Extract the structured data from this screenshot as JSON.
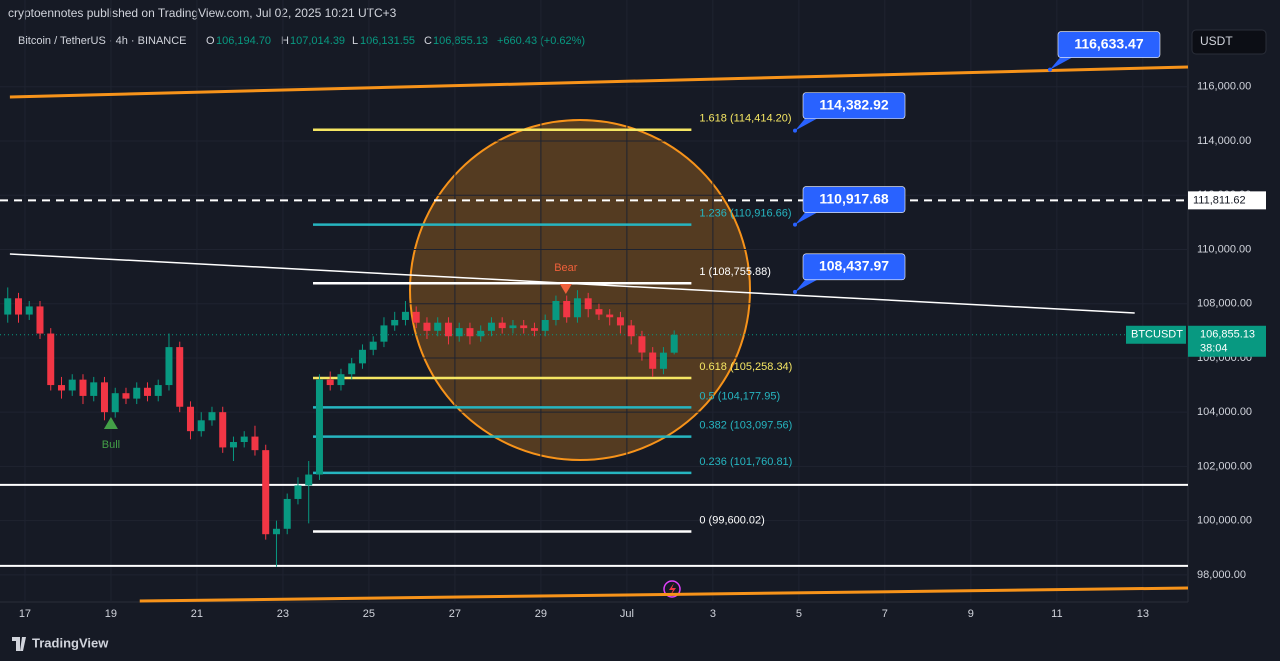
{
  "header": {
    "published": "cryptoennotes published on TradingView.com, Jul 02, 2025 10:21 UTC+3",
    "symbol": "Bitcoin / TetherUS · 4h · BINANCE",
    "o_key": "O",
    "o": "106,194.70",
    "h_key": "H",
    "h": "107,014.39",
    "l_key": "L",
    "l": "106,131.55",
    "c_key": "C",
    "c": "106,855.13",
    "change": "+660.43 (+0.62%)",
    "currency": "USDT",
    "brand": "TradingView"
  },
  "chart_data": {
    "type": "candlestick",
    "up_color": "#089981",
    "down_color": "#f23645",
    "x": [
      16.6,
      16.85,
      17.1,
      17.35,
      17.6,
      17.85,
      18.1,
      18.35,
      18.6,
      18.85,
      19.1,
      19.35,
      19.6,
      19.85,
      20.1,
      20.35,
      20.6,
      20.85,
      21.1,
      21.35,
      21.6,
      21.85,
      22.1,
      22.35,
      22.6,
      22.85,
      23.1,
      23.35,
      23.6,
      23.85,
      24.1,
      24.35,
      24.6,
      24.85,
      25.1,
      25.35,
      25.6,
      25.85,
      26.1,
      26.35,
      26.6,
      26.85,
      27.1,
      27.35,
      27.6,
      27.85,
      28.1,
      28.35,
      28.6,
      28.85,
      29.1,
      29.35,
      29.6,
      29.85,
      30.1,
      30.35,
      30.6,
      30.85,
      31.1,
      31.35,
      31.6,
      31.85,
      32.1
    ],
    "open": [
      107600,
      108200,
      107600,
      107900,
      106900,
      105000,
      104800,
      105200,
      104600,
      105100,
      104000,
      104700,
      104500,
      104900,
      104600,
      105000,
      106400,
      104200,
      103300,
      103700,
      104000,
      102700,
      102900,
      103100,
      102600,
      99500,
      99700,
      100800,
      101300,
      101700,
      105200,
      105000,
      105400,
      105800,
      106300,
      106600,
      107200,
      107400,
      107700,
      107300,
      107000,
      107300,
      106800,
      107100,
      106800,
      107000,
      107300,
      107100,
      107200,
      107100,
      107000,
      107400,
      108100,
      107500,
      108200,
      107800,
      107600,
      107500,
      107200,
      106800,
      106200,
      105600,
      106194.7
    ],
    "high": [
      108600,
      108400,
      108100,
      108100,
      107100,
      105300,
      105400,
      105400,
      105300,
      105300,
      104900,
      104900,
      105100,
      105100,
      105200,
      106900,
      106600,
      104400,
      104000,
      104200,
      104200,
      103100,
      103300,
      103500,
      102800,
      100000,
      101000,
      101600,
      102200,
      105400,
      105500,
      105600,
      106000,
      106500,
      106800,
      107500,
      107700,
      108100,
      107900,
      107500,
      107500,
      107500,
      107300,
      107300,
      107200,
      107500,
      107500,
      107400,
      107400,
      107300,
      107600,
      108300,
      108300,
      108500,
      108400,
      108000,
      107800,
      107700,
      107400,
      107000,
      106400,
      106400,
      107014.39
    ],
    "low": [
      107300,
      107300,
      107400,
      106700,
      104800,
      104500,
      104600,
      104300,
      104400,
      103700,
      103800,
      104300,
      104300,
      104400,
      104400,
      104800,
      104000,
      103000,
      103100,
      103500,
      102500,
      102200,
      102700,
      102400,
      99300,
      98300,
      99500,
      100600,
      99900,
      101500,
      104800,
      104800,
      105200,
      105600,
      106100,
      106400,
      107000,
      107200,
      107100,
      106700,
      106800,
      106500,
      106600,
      106500,
      106600,
      106800,
      106900,
      106900,
      106900,
      106800,
      106800,
      107200,
      107300,
      107300,
      107500,
      107400,
      107200,
      106900,
      106500,
      105900,
      105300,
      105400,
      106131.55
    ],
    "close": [
      108200,
      107600,
      107900,
      106900,
      105000,
      104800,
      105200,
      104600,
      105100,
      104000,
      104700,
      104500,
      104900,
      104600,
      105000,
      106400,
      104200,
      103300,
      103700,
      104000,
      102700,
      102900,
      103100,
      102600,
      99500,
      99700,
      100800,
      101300,
      101700,
      105200,
      105000,
      105400,
      105800,
      106300,
      106600,
      107200,
      107400,
      107700,
      107300,
      107000,
      107300,
      106800,
      107100,
      106800,
      107000,
      107300,
      107100,
      107200,
      107100,
      107000,
      107400,
      108100,
      107500,
      108200,
      107800,
      107600,
      107500,
      107200,
      106800,
      106200,
      105600,
      106195,
      106855.13
    ],
    "xlim": [
      16.42,
      44.05
    ],
    "ylim": [
      97000,
      119200
    ],
    "xticks": [
      17,
      19,
      21,
      23,
      25,
      27,
      29,
      {
        "value": 31,
        "label": "Jul"
      },
      {
        "value": 33,
        "label": "3"
      },
      {
        "value": 35,
        "label": "5"
      },
      {
        "value": 37,
        "label": "7"
      },
      {
        "value": 39,
        "label": "9"
      },
      {
        "value": 41,
        "label": "11"
      },
      {
        "value": 43,
        "label": "13"
      }
    ],
    "yticks": [
      {
        "value": 98000,
        "label": "98,000.00"
      },
      {
        "value": 100000,
        "label": "100,000.00"
      },
      {
        "value": 102000,
        "label": "102,000.00"
      },
      {
        "value": 104000,
        "label": "104,000.00"
      },
      {
        "value": 106000,
        "label": "106,000.00"
      },
      {
        "value": 108000,
        "label": "108,000.00"
      },
      {
        "value": 110000,
        "label": "110,000.00"
      },
      {
        "value": 112000,
        "label": "112,000.00"
      },
      {
        "value": 114000,
        "label": "114,000.00"
      },
      {
        "value": 116000,
        "label": "116,000.00"
      }
    ],
    "fib": [
      {
        "value": 114414.2,
        "label": "1.618 (114,414.20)",
        "color": "#f5e663"
      },
      {
        "value": 110916.66,
        "label": "1.236 (110,916.66)",
        "color": "#26b5c0"
      },
      {
        "value": 108755.88,
        "label": "1 (108,755.88)",
        "color": "#ffffff"
      },
      {
        "value": 105258.34,
        "label": "0.618 (105,258.34)",
        "color": "#f5e663"
      },
      {
        "value": 104177.95,
        "label": "0.5 (104,177.95)",
        "color": "#26b5c0"
      },
      {
        "value": 103097.56,
        "label": "0.382 (103,097.56)",
        "color": "#26b5c0"
      },
      {
        "value": 101760.81,
        "label": "0.236 (101,760.81)",
        "color": "#26b5c0"
      },
      {
        "value": 99600.02,
        "label": "0 (99,600.02)",
        "color": "#ffffff"
      }
    ],
    "fib_x": [
      23.7,
      32.5
    ],
    "callouts": [
      {
        "value": 116633.47,
        "label": "116,633.47",
        "x": 40.84
      },
      {
        "value": 114382.92,
        "label": "114,382.92",
        "x": 34.91
      },
      {
        "value": 110917.68,
        "label": "110,917.68",
        "x": 34.91
      },
      {
        "value": 108437.97,
        "label": "108,437.97",
        "x": 34.91
      }
    ],
    "hlines": [
      {
        "value": 111811.62,
        "label": "111,811.62",
        "dashed": true
      },
      {
        "value": 101320
      },
      {
        "value": 98330
      }
    ],
    "trendlines": [
      {
        "color": "#f7931a",
        "x": [
          16.65,
          44.05
        ],
        "y": [
          115623,
          116729
        ]
      },
      {
        "color": "#f7931a",
        "x": [
          19.67,
          44.05
        ],
        "y": [
          97037,
          97516
        ]
      },
      {
        "color": "#ffffff",
        "x": [
          16.65,
          42.81
        ],
        "y": [
          109833,
          107658
        ]
      }
    ],
    "annotations": [
      {
        "text": "Bear",
        "x": 29.58,
        "y": 108470,
        "color": "#f0603a",
        "dir": "down"
      },
      {
        "text": "Bull",
        "x": 19,
        "y": 103640,
        "color": "#43a047",
        "dir": "up"
      }
    ],
    "last": {
      "name": "BTCUSDT",
      "value": 106855.13,
      "label": "106,855.13",
      "countdown": "38:04"
    }
  }
}
